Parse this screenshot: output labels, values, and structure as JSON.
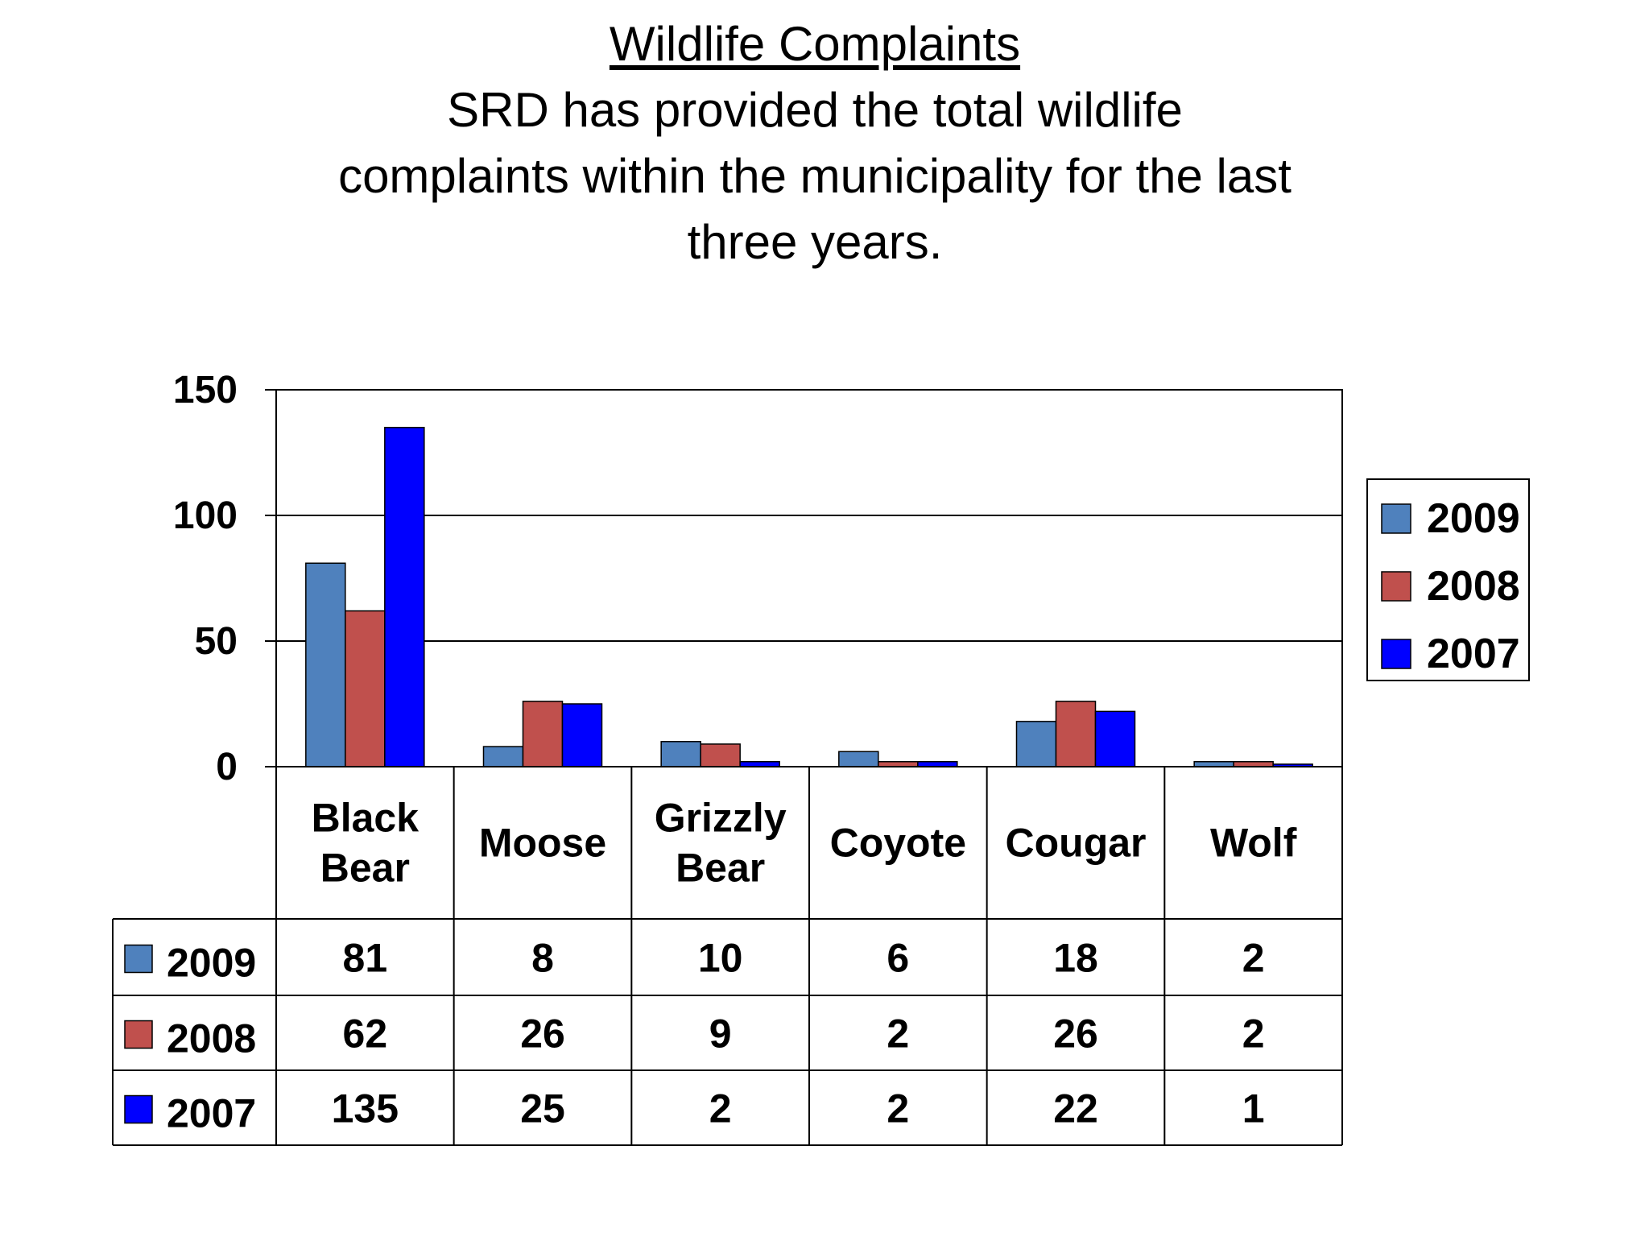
{
  "slide": {
    "heading": "Wildlife Complaints",
    "subtitle_lines": [
      "SRD has provided the total wildlife",
      "complaints within the municipality for the last",
      "three years."
    ]
  },
  "chart_data": {
    "type": "bar",
    "title": "",
    "xlabel": "",
    "ylabel": "",
    "ylim": [
      0,
      150
    ],
    "yticks": [
      0,
      50,
      100,
      150
    ],
    "grid": true,
    "legend_position": "right",
    "data_table": true,
    "categories": [
      [
        "Black",
        "Bear"
      ],
      [
        "Moose"
      ],
      [
        "Grizzly",
        "Bear"
      ],
      [
        "Coyote"
      ],
      [
        "Cougar"
      ],
      [
        "Wolf"
      ]
    ],
    "series": [
      {
        "name": "2009",
        "color": "#4f81bd",
        "values": [
          81,
          8,
          10,
          6,
          18,
          2
        ]
      },
      {
        "name": "2008",
        "color": "#c0504d",
        "values": [
          62,
          26,
          9,
          2,
          26,
          2
        ]
      },
      {
        "name": "2007",
        "color": "#0000ff",
        "values": [
          135,
          25,
          2,
          2,
          22,
          1
        ]
      }
    ]
  }
}
